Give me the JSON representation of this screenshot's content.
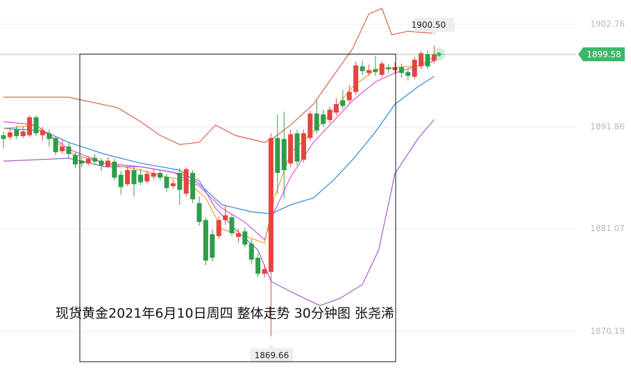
{
  "chart_data": {
    "type": "candlestick",
    "caption": "现货黄金2021年6月10日周四 整体走势  30分钟图  张尧浠",
    "ylim": [
      1864.4,
      1905.34
    ],
    "yticks": [
      1870.19,
      1881.07,
      1891.86,
      1902.76
    ],
    "grid": true,
    "up_color": "#e5443f",
    "down_color": "#2e9d4a",
    "last_price": 1899.58,
    "last_price_color": "#3cb86a",
    "high": {
      "value": 1900.5,
      "label": "1900.50"
    },
    "low": 1869.66,
    "candles": {
      "open": [
        1891.0,
        1890.8,
        1891.6,
        1890.9,
        1891.0,
        1892.9,
        1891.0,
        1891.2,
        1890.7,
        1889.3,
        1889.8,
        1888.9,
        1888.3,
        1888.0,
        1888.6,
        1888.3,
        1887.7,
        1888.2,
        1886.8,
        1885.8,
        1887.3,
        1886.8,
        1886.1,
        1886.6,
        1887.0,
        1886.6,
        1885.6,
        1887.0,
        1884.8,
        1887.0,
        1883.8,
        1882.0,
        1880.5,
        1880.3,
        1882.0,
        1882.3,
        1880.2,
        1880.8,
        1879.5,
        1878.0,
        1876.3,
        1876.5,
        1890.7,
        1890.6,
        1888.0,
        1891.2,
        1888.4,
        1890.7,
        1893.3,
        1893.2,
        1892.6,
        1893.4,
        1894.7,
        1894.7,
        1895.6,
        1898.3,
        1897.6,
        1898.0,
        1897.4,
        1898.2,
        1897.9,
        1898.2,
        1897.7,
        1897.2,
        1898.3,
        1899.6,
        1898.9
      ],
      "high": [
        1891.4,
        1891.7,
        1892.0,
        1891.9,
        1893.1,
        1893.1,
        1891.9,
        1891.6,
        1890.9,
        1890.5,
        1890.2,
        1889.2,
        1888.7,
        1888.8,
        1889.0,
        1888.6,
        1888.7,
        1888.5,
        1887.2,
        1887.7,
        1887.6,
        1887.4,
        1887.2,
        1887.4,
        1887.3,
        1886.9,
        1886.3,
        1887.5,
        1887.6,
        1887.3,
        1884.5,
        1882.3,
        1881.0,
        1882.4,
        1883.6,
        1882.6,
        1881.1,
        1881.2,
        1880.0,
        1878.5,
        1877.3,
        1891.2,
        1893.2,
        1893.5,
        1891.6,
        1891.6,
        1891.6,
        1893.6,
        1894.7,
        1893.7,
        1894.0,
        1894.9,
        1895.8,
        1896.3,
        1898.8,
        1898.9,
        1898.5,
        1899.4,
        1898.9,
        1898.5,
        1898.7,
        1898.6,
        1898.1,
        1899.3,
        1899.9,
        1900.0,
        1900.5
      ],
      "low": [
        1889.6,
        1890.5,
        1890.6,
        1890.7,
        1890.8,
        1890.9,
        1890.4,
        1889.8,
        1888.9,
        1889.0,
        1888.6,
        1887.5,
        1887.6,
        1887.8,
        1887.9,
        1887.2,
        1887.5,
        1886.2,
        1884.7,
        1885.6,
        1884.5,
        1885.7,
        1885.9,
        1886.3,
        1886.2,
        1885.0,
        1885.3,
        1883.6,
        1884.5,
        1883.8,
        1881.4,
        1877.2,
        1877.6,
        1880.0,
        1881.5,
        1880.3,
        1879.6,
        1879.1,
        1877.3,
        1876.0,
        1875.9,
        1869.66,
        1884.8,
        1884.3,
        1887.6,
        1887.8,
        1888.1,
        1890.4,
        1891.2,
        1891.9,
        1892.3,
        1893.1,
        1893.8,
        1894.4,
        1895.3,
        1897.4,
        1897.3,
        1897.3,
        1897.1,
        1897.6,
        1897.5,
        1897.1,
        1896.8,
        1896.9,
        1898.0,
        1898.0,
        1898.6
      ],
      "close": [
        1890.6,
        1891.3,
        1890.9,
        1891.4,
        1892.9,
        1891.2,
        1891.5,
        1890.6,
        1889.2,
        1889.8,
        1889.0,
        1887.9,
        1888.0,
        1888.5,
        1888.2,
        1887.8,
        1888.3,
        1886.5,
        1885.5,
        1887.3,
        1885.8,
        1886.0,
        1886.9,
        1887.0,
        1886.5,
        1885.4,
        1885.9,
        1885.2,
        1887.4,
        1884.2,
        1881.8,
        1877.7,
        1878.0,
        1882.0,
        1882.5,
        1880.6,
        1880.6,
        1879.4,
        1877.8,
        1876.3,
        1876.8,
        1890.7,
        1887.0,
        1887.3,
        1891.1,
        1888.2,
        1891.2,
        1893.3,
        1891.5,
        1892.2,
        1893.7,
        1894.3,
        1894.1,
        1895.6,
        1898.4,
        1897.8,
        1897.9,
        1897.7,
        1898.6,
        1898.0,
        1898.2,
        1897.6,
        1897.3,
        1899.0,
        1899.7,
        1898.3,
        1899.58
      ]
    },
    "lines": [
      {
        "color": "#d9624a",
        "x": [
          0,
          10,
          17.5,
          21,
          24,
          27,
          30,
          32.5,
          35.5,
          40,
          41.5,
          44,
          47.5,
          50.5,
          53.5,
          56,
          58,
          59.5,
          62,
          66
        ],
        "values": [
          1895.03,
          1895.03,
          1893.92,
          1892.45,
          1890.98,
          1890.02,
          1890.24,
          1892.08,
          1890.98,
          1890.24,
          1890.76,
          1892.08,
          1894.29,
          1897.24,
          1900.18,
          1903.86,
          1904.45,
          1901.66,
          1902.02,
          1901.8
        ]
      },
      {
        "color": "#a35bd0",
        "x": [
          0,
          10,
          15.5,
          21,
          27,
          30,
          32.5,
          35.5,
          39,
          41,
          44,
          48.5,
          51.5,
          55,
          57.5,
          60,
          63.5,
          66
        ],
        "values": [
          1888.25,
          1888.55,
          1887.66,
          1887.66,
          1886.93,
          1886.19,
          1883.25,
          1881.03,
          1878.83,
          1875.51,
          1874.41,
          1872.93,
          1873.67,
          1875.15,
          1878.83,
          1886.93,
          1890.61,
          1892.67
        ]
      },
      {
        "color": "#2f86d8",
        "x": [
          0,
          6,
          10,
          15.5,
          21,
          27,
          30,
          33.5,
          38,
          41,
          44,
          47.5,
          50.5,
          53.5,
          57,
          60,
          63.5,
          66
        ],
        "values": [
          1891.72,
          1891.49,
          1890.24,
          1888.99,
          1888.03,
          1887.3,
          1885.82,
          1883.61,
          1882.88,
          1882.66,
          1883.61,
          1884.35,
          1886.19,
          1888.4,
          1891.35,
          1894.29,
          1896.13,
          1897.24
        ]
      },
      {
        "color": "#d84fd8",
        "x": [
          0,
          5,
          10,
          15.5,
          21,
          26,
          30,
          33.5,
          37,
          40,
          41.5,
          44,
          47.5,
          50.5,
          53.5,
          57,
          60,
          63.5,
          66
        ],
        "values": [
          1892.45,
          1892.08,
          1889.51,
          1888.03,
          1887.66,
          1887.08,
          1885.6,
          1883.25,
          1881.77,
          1879.93,
          1882.88,
          1886.56,
          1890.24,
          1892.45,
          1894.66,
          1896.65,
          1897.61,
          1898.34,
          1898.86
        ]
      },
      {
        "color": "#f0a030",
        "x": [
          0,
          5,
          10,
          15.5,
          21,
          25,
          28,
          31,
          33.5,
          37,
          40,
          41.5,
          44,
          47.5,
          50.5,
          53.5,
          57,
          60,
          63.5,
          66
        ],
        "values": [
          1891.72,
          1892.08,
          1889.14,
          1888.03,
          1887.3,
          1886.56,
          1886.19,
          1884.35,
          1881.03,
          1880.3,
          1879.56,
          1884.35,
          1889.14,
          1891.35,
          1893.55,
          1896.13,
          1897.97,
          1898.19,
          1898.34,
          1899.3
        ]
      }
    ]
  }
}
